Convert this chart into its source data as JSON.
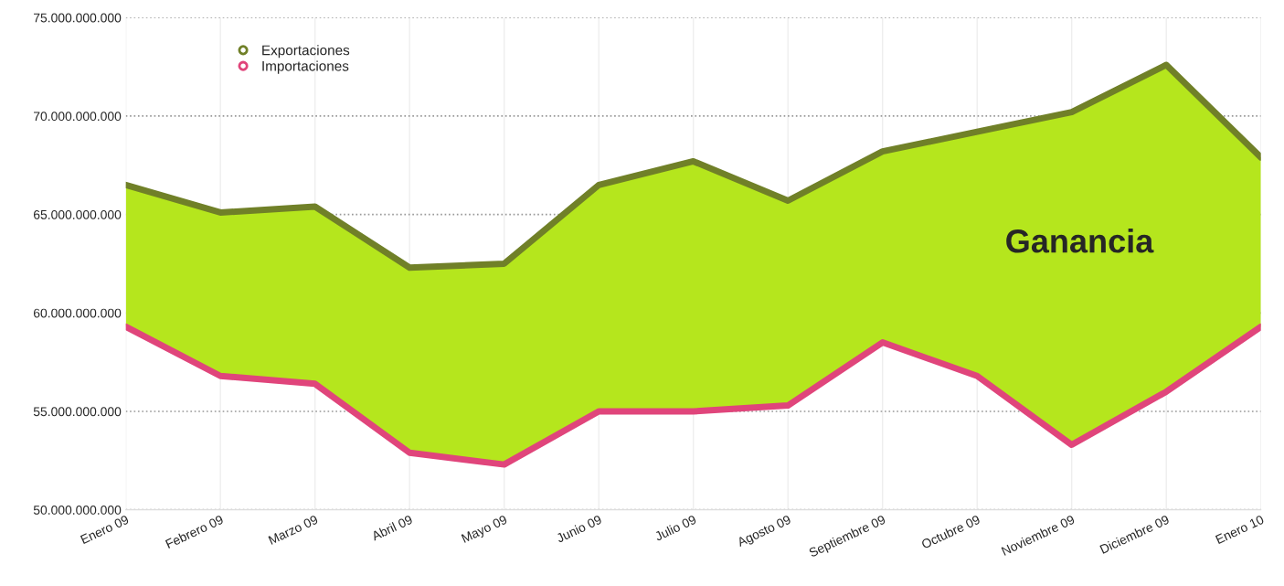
{
  "chart_data": {
    "type": "area",
    "categories": [
      "Enero 09",
      "Febrero 09",
      "Marzo 09",
      "Abril 09",
      "Mayo 09",
      "Junio 09",
      "Julio 09",
      "Agosto 09",
      "Septiembre 09",
      "Octubre 09",
      "Noviembre 09",
      "Diciembre 09",
      "Enero 10"
    ],
    "series": [
      {
        "name": "Exportaciones",
        "color": "#b5e61d",
        "values": [
          66500000000,
          65100000000,
          65400000000,
          62300000000,
          62500000000,
          66500000000,
          67700000000,
          65700000000,
          68200000000,
          69200000000,
          70200000000,
          72600000000,
          67900000000
        ]
      },
      {
        "name": "Importaciones",
        "type": "line",
        "color": "#e0457b",
        "values": [
          59300000000,
          56800000000,
          56400000000,
          52900000000,
          52300000000,
          55000000000,
          55000000000,
          55300000000,
          58500000000,
          56800000000,
          53300000000,
          56000000000,
          59300000000
        ]
      }
    ],
    "ylim": [
      50000000000,
      75000000000
    ],
    "yticks": [
      {
        "value": 50000000000,
        "label": "50.000.000.000"
      },
      {
        "value": 55000000000,
        "label": "55.000.000.000"
      },
      {
        "value": 60000000000,
        "label": "60.000.000.000"
      },
      {
        "value": 65000000000,
        "label": "65.000.000.000"
      },
      {
        "value": 70000000000,
        "label": "70.000.000.000"
      },
      {
        "value": 75000000000,
        "label": "75.000.000.000"
      }
    ],
    "annotations": [
      "Ganancia"
    ],
    "grid": true,
    "legend": "top left",
    "line_style": "solid"
  }
}
